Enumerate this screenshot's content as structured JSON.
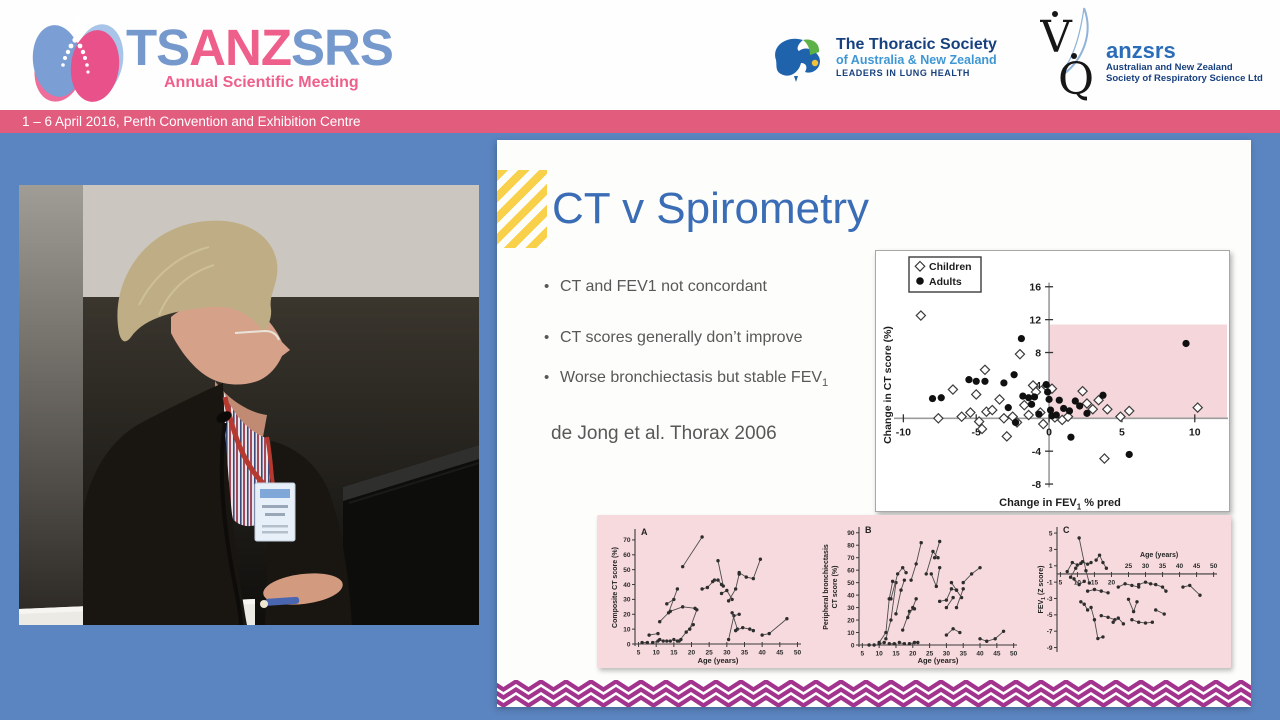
{
  "header": {
    "logo": {
      "ts": "TS",
      "anz": "ANZ",
      "srs": "SRS",
      "subtitle": "Annual Scientific Meeting"
    },
    "banner": "1 – 6 April 2016, Perth Convention and Exhibition Centre",
    "thoracic": {
      "line1": "The Thoracic Society",
      "line2": "of Australia & New Zealand",
      "line3": "LEADERS IN LUNG HEALTH"
    },
    "anzsrs": {
      "v": "V",
      "q": "Q",
      "name": "anzsrs",
      "line1": "Australian and New Zealand",
      "line2": "Society of Respiratory Science Ltd"
    }
  },
  "slide": {
    "title": "CT v Spirometry",
    "bullets": [
      {
        "text": "CT and FEV1 not concordant",
        "sub": ""
      },
      {
        "text": "CT scores generally don’t improve",
        "sub": ""
      },
      {
        "text": "Worse bronchiectasis but stable FEV",
        "sub": "1"
      }
    ],
    "citation": "de Jong et al. Thorax 2006"
  },
  "colors": {
    "banner_pink": "#e25c7e",
    "stage_blue": "#5b85c1",
    "title_blue": "#3a6db6",
    "accent_yellow": "#f8d04a",
    "text_gray": "#585858",
    "chevron_purple": "#a2348e",
    "figure_pink": "#f7dade",
    "scatter_shade": "#f5d6da",
    "logo_pink": "#ee5f8b",
    "logo_blue": "#7599cd",
    "thoracic_navy": "#17407f",
    "thoracic_lightblue": "#3e97d4",
    "anzsrs_blue": "#2a6cb8"
  },
  "chart_data": [
    {
      "id": "scatter",
      "type": "scatter",
      "xlabel": "Change in FEV1 % pred",
      "ylabel": "Change in CT score (%)",
      "xlim": [
        -10.3,
        11.8
      ],
      "ylim": [
        -8.6,
        16.7
      ],
      "xticks": [
        -10,
        -5,
        0,
        5,
        10
      ],
      "yticks": [
        16,
        12,
        8,
        4,
        -4,
        -8
      ],
      "grid": false,
      "legend_position": "top-left",
      "shaded_region": {
        "x": [
          0,
          11.8
        ],
        "y": [
          0,
          11.4
        ]
      },
      "series": [
        {
          "name": "Children",
          "marker": "diamond",
          "points": [
            [
              -8.8,
              12.5
            ],
            [
              -7.6,
              0
            ],
            [
              -6.6,
              3.5
            ],
            [
              -6,
              0.2
            ],
            [
              -5.4,
              0.7
            ],
            [
              -5,
              2.9
            ],
            [
              -4.8,
              -0.4
            ],
            [
              -4.6,
              -1.3
            ],
            [
              -4.4,
              5.9
            ],
            [
              -4.3,
              0.8
            ],
            [
              -3.9,
              1
            ],
            [
              -3.4,
              2.3
            ],
            [
              -3.1,
              0
            ],
            [
              -2.9,
              -2.2
            ],
            [
              -2.5,
              0.2
            ],
            [
              -2.2,
              -0.5
            ],
            [
              -2,
              7.8
            ],
            [
              -1.7,
              1.6
            ],
            [
              -1.4,
              0.4
            ],
            [
              -1.1,
              4
            ],
            [
              -0.9,
              3.2
            ],
            [
              -0.6,
              0.7
            ],
            [
              -0.4,
              -0.7
            ],
            [
              -0.2,
              3.9
            ],
            [
              0.2,
              3.6
            ],
            [
              0.4,
              0.1
            ],
            [
              0.9,
              -0.2
            ],
            [
              1.3,
              0.2
            ],
            [
              2.3,
              3.3
            ],
            [
              2.6,
              1.8
            ],
            [
              3,
              1.1
            ],
            [
              3.4,
              2.2
            ],
            [
              3.8,
              -4.9
            ],
            [
              4,
              1.1
            ],
            [
              4.9,
              0.2
            ],
            [
              5.5,
              0.9
            ],
            [
              10.2,
              1.3
            ]
          ]
        },
        {
          "name": "Adults",
          "marker": "circle",
          "points": [
            [
              -8,
              2.4
            ],
            [
              -7.4,
              2.5
            ],
            [
              -5.5,
              4.7
            ],
            [
              -5,
              4.5
            ],
            [
              -4.4,
              4.5
            ],
            [
              -3.1,
              4.3
            ],
            [
              -2.8,
              1.3
            ],
            [
              -2.4,
              5.3
            ],
            [
              -2.3,
              -0.5
            ],
            [
              -1.9,
              9.7
            ],
            [
              -1.8,
              2.7
            ],
            [
              -1.4,
              2.5
            ],
            [
              -1.2,
              1.7
            ],
            [
              -1,
              2.6
            ],
            [
              -0.7,
              0.5
            ],
            [
              -0.2,
              4.1
            ],
            [
              -0.1,
              3.2
            ],
            [
              0,
              2.3
            ],
            [
              0.1,
              1
            ],
            [
              0.2,
              0.3
            ],
            [
              0.5,
              0.4
            ],
            [
              0.7,
              2.2
            ],
            [
              1,
              1.2
            ],
            [
              1.4,
              0.9
            ],
            [
              1.5,
              -2.3
            ],
            [
              1.8,
              2.1
            ],
            [
              2.1,
              1.5
            ],
            [
              2.6,
              0.6
            ],
            [
              3.7,
              2.8
            ],
            [
              5.5,
              -4.4
            ],
            [
              9.4,
              9.1
            ]
          ]
        }
      ]
    },
    {
      "id": "panelA",
      "type": "line",
      "panel_label": "A",
      "xlabel": "Age (years)",
      "ylabel": "Composite CT score (%)",
      "xlim": [
        4,
        51
      ],
      "ylim": [
        0,
        76
      ],
      "xticks": [
        5,
        10,
        15,
        20,
        25,
        30,
        35,
        40,
        45,
        50
      ],
      "yticks": [
        0,
        10,
        20,
        30,
        40,
        50,
        60,
        70
      ],
      "segments": [
        [
          [
            8,
            6
          ],
          [
            10.5,
            7
          ]
        ],
        [
          [
            11,
            15
          ],
          [
            13.5,
            21
          ],
          [
            16,
            37
          ]
        ],
        [
          [
            13,
            27
          ],
          [
            15,
            30
          ]
        ],
        [
          [
            14,
            22
          ],
          [
            17.5,
            25
          ],
          [
            21,
            24
          ]
        ],
        [
          [
            17.5,
            52
          ],
          [
            23,
            72
          ]
        ],
        [
          [
            16.5,
            2
          ],
          [
            18.5,
            8
          ],
          [
            20.5,
            13
          ]
        ],
        [
          [
            19.5,
            10
          ],
          [
            21.5,
            23
          ]
        ],
        [
          [
            23,
            37
          ],
          [
            24.5,
            38
          ],
          [
            26.5,
            43
          ]
        ],
        [
          [
            26,
            42
          ],
          [
            27.5,
            43
          ],
          [
            28.5,
            40
          ]
        ],
        [
          [
            27.5,
            56
          ],
          [
            29,
            39
          ]
        ],
        [
          [
            28.5,
            34
          ],
          [
            30,
            36
          ],
          [
            31.5,
            30
          ]
        ],
        [
          [
            30.5,
            3
          ],
          [
            32,
            19
          ],
          [
            33.5,
            20
          ]
        ],
        [
          [
            31.5,
            21
          ],
          [
            33,
            10
          ]
        ],
        [
          [
            32.5,
            9
          ],
          [
            34.5,
            11
          ],
          [
            36.5,
            10
          ],
          [
            37.5,
            9
          ]
        ],
        [
          [
            30.5,
            29
          ],
          [
            32.5,
            37
          ],
          [
            33.5,
            47
          ]
        ],
        [
          [
            33.5,
            48
          ],
          [
            35.5,
            45
          ],
          [
            37.5,
            44
          ],
          [
            39.5,
            57
          ]
        ],
        [
          [
            40,
            6
          ],
          [
            42,
            7
          ],
          [
            47,
            17
          ]
        ],
        [
          [
            6,
            1
          ],
          [
            7.5,
            1
          ]
        ],
        [
          [
            9,
            1
          ],
          [
            10.5,
            2
          ]
        ],
        [
          [
            11,
            3
          ],
          [
            12,
            2
          ]
        ],
        [
          [
            13,
            2
          ],
          [
            14,
            2
          ]
        ],
        [
          [
            15,
            3
          ],
          [
            16,
            2
          ],
          [
            17,
            3
          ]
        ]
      ]
    },
    {
      "id": "panelB",
      "type": "line",
      "panel_label": "B",
      "xlabel": "Age (years)",
      "ylabel": "Peripheral bronchiectasis\nCT score (%)",
      "xlim": [
        4,
        51
      ],
      "ylim": [
        0,
        93
      ],
      "xticks": [
        5,
        10,
        15,
        20,
        25,
        30,
        35,
        40,
        45,
        50
      ],
      "yticks": [
        0,
        10,
        20,
        30,
        40,
        50,
        60,
        70,
        80,
        90
      ],
      "segments": [
        [
          [
            10,
            2
          ],
          [
            12,
            10
          ],
          [
            13,
            37
          ],
          [
            14,
            51
          ]
        ],
        [
          [
            12,
            5
          ],
          [
            13.5,
            20
          ],
          [
            15,
            50
          ]
        ],
        [
          [
            13.5,
            37
          ],
          [
            15.5,
            57
          ],
          [
            17,
            62
          ],
          [
            18,
            58
          ]
        ],
        [
          [
            15,
            25
          ],
          [
            16.5,
            44
          ],
          [
            17.5,
            52
          ]
        ],
        [
          [
            17,
            12
          ],
          [
            19,
            27
          ],
          [
            20.5,
            29
          ]
        ],
        [
          [
            18.5,
            22
          ],
          [
            20,
            30
          ],
          [
            21,
            37
          ]
        ],
        [
          [
            19.5,
            52
          ],
          [
            21,
            65
          ],
          [
            22.5,
            82
          ]
        ],
        [
          [
            24,
            57
          ],
          [
            26,
            75
          ],
          [
            27.5,
            70
          ]
        ],
        [
          [
            25.5,
            57
          ],
          [
            27,
            47
          ],
          [
            28,
            62
          ]
        ],
        [
          [
            26.5,
            70
          ],
          [
            28,
            83
          ]
        ],
        [
          [
            28,
            35
          ],
          [
            30,
            36
          ],
          [
            31.5,
            45
          ],
          [
            33,
            44
          ]
        ],
        [
          [
            30,
            30
          ],
          [
            32,
            38
          ]
        ],
        [
          [
            31.5,
            50
          ],
          [
            33,
            44
          ],
          [
            34.5,
            38
          ]
        ],
        [
          [
            33,
            30
          ],
          [
            35,
            45
          ]
        ],
        [
          [
            35,
            50
          ],
          [
            37.5,
            57
          ],
          [
            40,
            62
          ]
        ],
        [
          [
            30,
            8
          ],
          [
            32,
            13
          ],
          [
            34,
            10
          ]
        ],
        [
          [
            40,
            5
          ],
          [
            42,
            3
          ],
          [
            44.5,
            5
          ],
          [
            47,
            11
          ]
        ],
        [
          [
            7,
            0
          ],
          [
            8.5,
            0
          ]
        ],
        [
          [
            10,
            1
          ],
          [
            11.5,
            2
          ]
        ],
        [
          [
            13,
            1
          ],
          [
            14.5,
            1
          ]
        ],
        [
          [
            16,
            2
          ],
          [
            17.5,
            1
          ]
        ],
        [
          [
            19,
            1
          ],
          [
            20.5,
            2
          ],
          [
            21.5,
            2
          ]
        ]
      ]
    },
    {
      "id": "panelC",
      "type": "line",
      "panel_label": "C",
      "xlabel": "Age (years)",
      "ylabel": "FEV1 (Z score)",
      "x_axis_at_zero": true,
      "xlim": [
        4,
        51
      ],
      "ylim": [
        -9.3,
        5.5
      ],
      "xticks": [
        5,
        10,
        15,
        20,
        25,
        30,
        35,
        40,
        45,
        50
      ],
      "yticks": [
        5,
        3,
        1,
        -1,
        -3,
        -5,
        -7,
        -9
      ],
      "segments": [
        [
          [
            7,
            0.3
          ],
          [
            8.5,
            1.4
          ],
          [
            10,
            1.1
          ]
        ],
        [
          [
            8,
            -0.4
          ],
          [
            9.5,
            0.7
          ],
          [
            11,
            1.3
          ]
        ],
        [
          [
            10.5,
            4.4
          ],
          [
            12.5,
            0.4
          ],
          [
            13.5,
            -1.1
          ]
        ],
        [
          [
            9,
            -0.6
          ],
          [
            10.5,
            -1.3
          ],
          [
            12,
            -0.9
          ]
        ],
        [
          [
            11.5,
            1.5
          ],
          [
            13,
            1.2
          ],
          [
            14,
            1.4
          ]
        ],
        [
          [
            11,
            -3.4
          ],
          [
            12,
            -3.7
          ],
          [
            13,
            -4.4
          ]
        ],
        [
          [
            13,
            -2.1
          ],
          [
            15,
            -1.9
          ],
          [
            17,
            -2.1
          ],
          [
            19,
            -2.3
          ]
        ],
        [
          [
            14,
            -4.1
          ],
          [
            15,
            -5.6
          ],
          [
            16,
            -7.9
          ],
          [
            17.5,
            -7.7
          ]
        ],
        [
          [
            15.5,
            1.7
          ],
          [
            16.5,
            2.3
          ],
          [
            17.5,
            1.4
          ],
          [
            18.5,
            0.7
          ]
        ],
        [
          [
            17,
            -5.1
          ],
          [
            19,
            -5.3
          ],
          [
            21,
            -5.6
          ]
        ],
        [
          [
            20.5,
            -5.9
          ],
          [
            22,
            -5.4
          ],
          [
            23.5,
            -6.1
          ]
        ],
        [
          [
            22,
            -1.6
          ],
          [
            24,
            -1.2
          ],
          [
            26,
            -1.4
          ],
          [
            28,
            -1.6
          ]
        ],
        [
          [
            25,
            -3.1
          ],
          [
            26.5,
            -4.6
          ],
          [
            27.5,
            -3.4
          ]
        ],
        [
          [
            26,
            -5.6
          ],
          [
            28,
            -5.9
          ],
          [
            30,
            -6
          ],
          [
            32,
            -5.9
          ]
        ],
        [
          [
            28,
            -1.3
          ],
          [
            30,
            -1
          ],
          [
            31.5,
            -1.2
          ],
          [
            33,
            -1.3
          ],
          [
            35,
            -1.6
          ],
          [
            36,
            -2.1
          ]
        ],
        [
          [
            33,
            -4.4
          ],
          [
            35.5,
            -4.9
          ]
        ],
        [
          [
            41,
            -1.6
          ],
          [
            43,
            -1.4
          ],
          [
            46,
            -2.6
          ]
        ]
      ]
    }
  ]
}
